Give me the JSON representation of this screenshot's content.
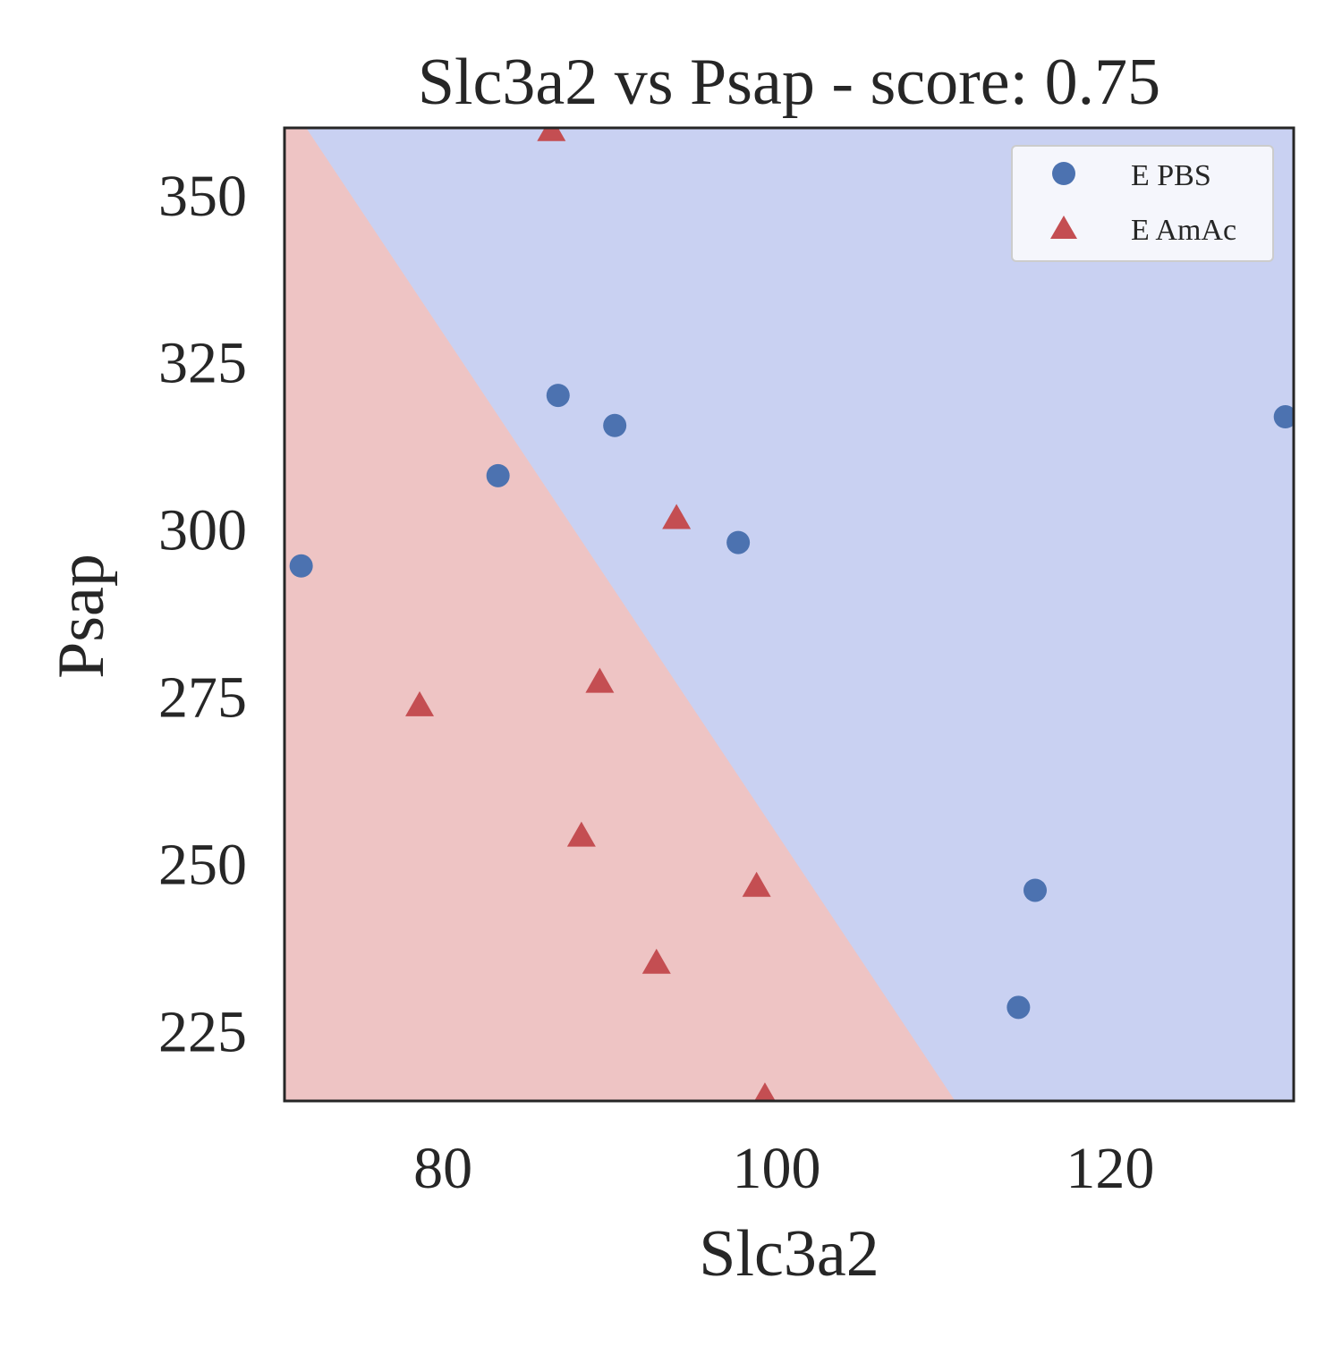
{
  "chart_data": {
    "type": "scatter",
    "title": "Slc3a2 vs Psap - score: 0.75",
    "xlabel": "Slc3a2",
    "ylabel": "Psap",
    "xlim": [
      70.5,
      131
    ],
    "ylim": [
      214.5,
      360
    ],
    "xticks": [
      80,
      100,
      120
    ],
    "yticks": [
      225,
      250,
      275,
      300,
      325,
      350
    ],
    "grid": false,
    "legend_position": "top-right",
    "decision_boundary": {
      "points": [
        [
          71.8,
          360
        ],
        [
          110.7,
          214.5
        ]
      ],
      "region_above": "E PBS",
      "region_below": "E AmAc"
    },
    "series": [
      {
        "name": "E PBS",
        "marker": "circle",
        "color": "#4c72b0",
        "region_color": "#c9d1f2",
        "points": [
          [
            71.5,
            294.5
          ],
          [
            83.3,
            308.0
          ],
          [
            86.9,
            320.0
          ],
          [
            90.3,
            315.5
          ],
          [
            97.7,
            298.0
          ],
          [
            114.5,
            228.5
          ],
          [
            115.5,
            246.0
          ],
          [
            130.5,
            316.8
          ]
        ]
      },
      {
        "name": "E AmAc",
        "marker": "triangle",
        "color": "#c44e52",
        "region_color": "#eec4c4",
        "points": [
          [
            86.5,
            359.5
          ],
          [
            94.0,
            301.5
          ],
          [
            78.6,
            273.5
          ],
          [
            89.4,
            277.0
          ],
          [
            88.3,
            254.0
          ],
          [
            98.8,
            246.5
          ],
          [
            92.8,
            235.0
          ],
          [
            99.3,
            215.0
          ]
        ]
      }
    ]
  }
}
